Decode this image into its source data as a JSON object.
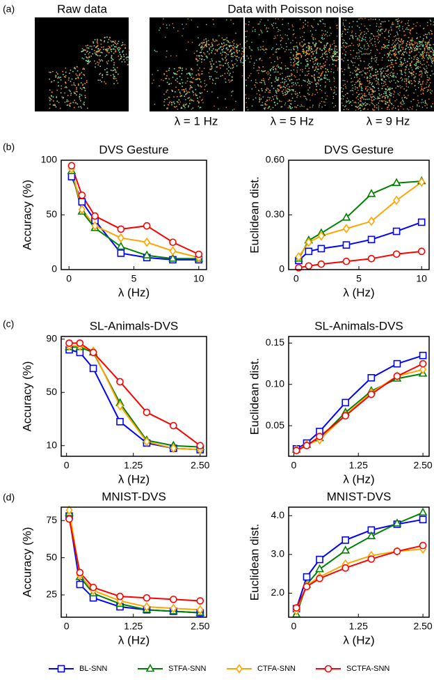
{
  "panels": [
    "(a)",
    "(b)",
    "(c)",
    "(d)"
  ],
  "images": {
    "raw_title": "Raw data",
    "noise_title": "Data with Poisson noise",
    "captions": [
      "λ = 1 Hz",
      "λ = 5 Hz",
      "λ = 9 Hz"
    ]
  },
  "series": [
    {
      "name": "BL-SNN",
      "color": "#0000ff",
      "marker": "square"
    },
    {
      "name": "STFA-SNN",
      "color": "#008000",
      "marker": "triangle"
    },
    {
      "name": "CTFA-SNN",
      "color": "#ffa500",
      "marker": "diamond"
    },
    {
      "name": "SCTFA-SNN",
      "color": "#ff0000",
      "marker": "circle"
    }
  ],
  "chart_data": [
    {
      "type": "line",
      "title": "DVS Gesture",
      "x_label": "λ (Hz)",
      "y_label": "Accuracy (%)",
      "x": [
        0.2,
        1,
        2,
        4,
        6,
        8,
        10
      ],
      "xlim": [
        -0.6,
        10.6
      ],
      "xticks": [
        0,
        5,
        10
      ],
      "ylim": [
        0,
        100
      ],
      "yticks": [
        0,
        50,
        100
      ],
      "series": [
        {
          "values": [
            85,
            62,
            45,
            15,
            11,
            9,
            9
          ]
        },
        {
          "values": [
            90,
            53,
            38,
            21,
            13,
            10,
            10
          ]
        },
        {
          "values": [
            92,
            55,
            40,
            29,
            25,
            17,
            11
          ]
        },
        {
          "values": [
            95,
            68,
            49,
            37,
            40,
            25,
            14
          ]
        }
      ]
    },
    {
      "type": "line",
      "title": "DVS Gesture",
      "x_label": "λ (Hz)",
      "y_label": "Euclidean dist.",
      "x": [
        0.2,
        1,
        2,
        4,
        6,
        8,
        10
      ],
      "xlim": [
        -0.6,
        10.6
      ],
      "xticks": [
        0,
        5,
        10
      ],
      "ylim": [
        0,
        0.6
      ],
      "yticks": [
        0,
        {
          "value": 0.3,
          "label": "0.30"
        },
        {
          "value": 0.6,
          "label": "0.60"
        }
      ],
      "series": [
        {
          "values": [
            0.05,
            0.1,
            0.115,
            0.135,
            0.165,
            0.21,
            0.26
          ]
        },
        {
          "values": [
            0.06,
            0.16,
            0.2,
            0.285,
            0.415,
            0.475,
            0.485
          ]
        },
        {
          "values": [
            0.07,
            0.15,
            0.185,
            0.225,
            0.265,
            0.38,
            0.48
          ]
        },
        {
          "values": [
            0.01,
            0.02,
            0.03,
            0.045,
            0.06,
            0.085,
            0.1
          ]
        }
      ]
    },
    {
      "type": "line",
      "title": "SL-Animals-DVS",
      "x_label": "λ (Hz)",
      "y_label": "Accuracy (%)",
      "x": [
        0.05,
        0.25,
        0.5,
        1,
        1.5,
        2,
        2.5
      ],
      "xlim": [
        -0.1,
        2.62
      ],
      "xticks": [
        0,
        1.25,
        {
          "value": 2.5,
          "label": "2.50"
        }
      ],
      "ylim": [
        2,
        92
      ],
      "yticks": [
        10,
        50,
        90
      ],
      "series": [
        {
          "values": [
            82,
            80,
            68,
            28,
            12,
            8,
            7
          ]
        },
        {
          "values": [
            84,
            84,
            80,
            42,
            14,
            10,
            9
          ]
        },
        {
          "values": [
            85,
            85,
            81,
            40,
            13,
            8,
            7
          ]
        },
        {
          "values": [
            87,
            87,
            80,
            58,
            35,
            25,
            10
          ]
        }
      ]
    },
    {
      "type": "line",
      "title": "SL-Animals-DVS",
      "x_label": "λ (Hz)",
      "y_label": "Euclidean dist.",
      "x": [
        0.05,
        0.25,
        0.5,
        1,
        1.5,
        2,
        2.5
      ],
      "xlim": [
        -0.1,
        2.62
      ],
      "xticks": [
        0,
        1.25,
        {
          "value": 2.5,
          "label": "2.50"
        }
      ],
      "ylim": [
        0.013,
        0.158
      ],
      "yticks": [
        0.05,
        {
          "value": 0.1,
          "label": "0.10"
        },
        0.15
      ],
      "series": [
        {
          "values": [
            0.022,
            0.029,
            0.043,
            0.078,
            0.108,
            0.125,
            0.135
          ]
        },
        {
          "values": [
            0.021,
            0.027,
            0.035,
            0.066,
            0.092,
            0.107,
            0.113
          ]
        },
        {
          "values": [
            0.021,
            0.027,
            0.033,
            0.063,
            0.09,
            0.11,
            0.118
          ]
        },
        {
          "values": [
            0.02,
            0.026,
            0.037,
            0.062,
            0.088,
            0.11,
            0.125
          ]
        }
      ]
    },
    {
      "type": "line",
      "title": "MNIST-DVS",
      "x_label": "λ (Hz)",
      "y_label": "Accuracy (%)",
      "x": [
        0.05,
        0.25,
        0.5,
        1,
        1.5,
        2,
        2.5
      ],
      "xlim": [
        -0.1,
        2.62
      ],
      "xticks": [
        0,
        1.25,
        {
          "value": 2.5,
          "label": "2.50"
        }
      ],
      "ylim": [
        10,
        84
      ],
      "yticks": [
        25,
        50,
        75
      ],
      "series": [
        {
          "values": [
            78,
            32,
            23,
            17,
            15,
            14,
            13
          ]
        },
        {
          "values": [
            80,
            37,
            26,
            19,
            15,
            14,
            13
          ]
        },
        {
          "values": [
            82,
            38,
            28,
            21,
            17,
            16,
            15
          ]
        },
        {
          "values": [
            76,
            40,
            30,
            24,
            23,
            22,
            21
          ]
        }
      ]
    },
    {
      "type": "line",
      "title": "MNIST-DVS",
      "x_label": "λ (Hz)",
      "y_label": "Euclidean dist.",
      "x": [
        0.05,
        0.25,
        0.5,
        1,
        1.5,
        2,
        2.5
      ],
      "xlim": [
        -0.1,
        2.62
      ],
      "xticks": [
        0,
        1.25,
        {
          "value": 2.5,
          "label": "2.50"
        }
      ],
      "ylim": [
        1.38,
        4.22
      ],
      "yticks": [
        {
          "value": 2,
          "label": "2.0"
        },
        {
          "value": 3,
          "label": "3.0"
        },
        {
          "value": 4,
          "label": "4.0"
        }
      ],
      "series": [
        {
          "values": [
            1.6,
            2.42,
            2.87,
            3.37,
            3.63,
            3.78,
            3.9
          ]
        },
        {
          "values": [
            1.45,
            2.22,
            2.62,
            3.1,
            3.47,
            3.8,
            4.08
          ]
        },
        {
          "values": [
            1.55,
            2.2,
            2.42,
            2.75,
            2.97,
            3.08,
            3.14
          ]
        },
        {
          "values": [
            1.62,
            2.17,
            2.38,
            2.65,
            2.88,
            3.08,
            3.23
          ]
        }
      ]
    }
  ]
}
